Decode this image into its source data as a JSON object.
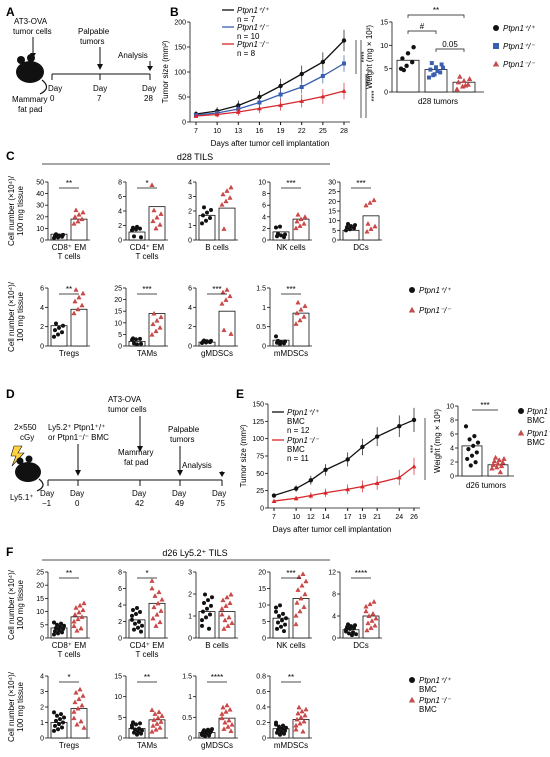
{
  "figure": {
    "panels": [
      {
        "label": "A",
        "texts": [
          "AT3-OVA",
          "tumor cells",
          "Mammary",
          "fat pad",
          "Palpable",
          "tumors",
          "Analysis",
          "Day",
          "0",
          "Day",
          "7",
          "Day",
          "28"
        ]
      },
      {
        "label": "B"
      },
      {
        "label": "C",
        "title": "d28 TILS"
      },
      {
        "label": "D",
        "texts": [
          "2×550",
          "cGy",
          "Ly5.2⁺ Ptpn1⁺/⁺",
          "or Ptpn1⁻/⁻ BMC",
          "AT3-OVA",
          "tumor cells",
          "Mammary",
          "fat pad",
          "Palpable",
          "tumors",
          "Analysis",
          "Ly5.1⁺",
          "Day",
          "−1",
          "Day",
          "0",
          "Day",
          "42",
          "Day",
          "49",
          "Day",
          "75"
        ]
      },
      {
        "label": "E"
      },
      {
        "label": "F",
        "title": "d26 Ly5.2⁺ TILS"
      }
    ],
    "legends": {
      "B": [
        "Ptpn1⁺/⁺",
        "Ptpn1⁺/⁻",
        "Ptpn1⁻/⁻"
      ],
      "C": [
        "Ptpn1⁺/⁺",
        "Ptpn1⁻/⁻"
      ],
      "E": [
        "Ptpn1⁺/⁺ BMC",
        "Ptpn1⁻/⁻ BMC"
      ],
      "F": [
        "Ptpn1⁺/⁺ BMC",
        "Ptpn1⁻/⁻ BMC"
      ]
    },
    "colors": {
      "wt": "#111111",
      "het": "#3a5fb0",
      "ko": "#d7262b",
      "ko_fill": "#c0504d"
    }
  },
  "chart_data": [
    {
      "id": "B-growth",
      "type": "line",
      "xlabel": "Days after tumor cell implantation",
      "ylabel": "Tumor size (mm²)",
      "x": [
        7,
        10,
        13,
        16,
        19,
        22,
        25,
        28
      ],
      "ylim": [
        0,
        200
      ],
      "yticks": [
        0,
        50,
        100,
        150,
        200
      ],
      "series": [
        {
          "name": "Ptpn1⁺/⁺",
          "n": "n = 7",
          "values": [
            16,
            22,
            33,
            50,
            72,
            96,
            120,
            163
          ]
        },
        {
          "name": "Ptpn1⁺/⁻",
          "n": "n = 10",
          "values": [
            14,
            18,
            26,
            39,
            55,
            70,
            92,
            117
          ]
        },
        {
          "name": "Ptpn1⁻/⁻",
          "n": "n = 8",
          "values": [
            12,
            15,
            20,
            27,
            34,
            42,
            51,
            62
          ]
        }
      ],
      "significance": [
        "****",
        "****",
        "****"
      ]
    },
    {
      "id": "B-weight",
      "type": "bar",
      "ylabel": "Weight (mg × 10²)",
      "xlabel": "d28 tumors",
      "ylim": [
        0,
        15
      ],
      "yticks": [
        0,
        5,
        10,
        15
      ],
      "series": [
        {
          "name": "Ptpn1⁺/⁺",
          "values": [
            6.8
          ],
          "points": [
            5,
            5.6,
            6.4,
            7.2,
            8.3,
            9.6,
            4.7
          ]
        },
        {
          "name": "Ptpn1⁺/⁻",
          "values": [
            4.8
          ],
          "points": [
            3.1,
            3.8,
            4.2,
            4.8,
            5.3,
            5.9,
            6.2,
            4.5,
            5.2,
            3.6
          ]
        },
        {
          "name": "Ptpn1⁻/⁻",
          "values": [
            2.1
          ],
          "points": [
            0.6,
            1.2,
            1.6,
            2.1,
            2.4,
            2.8,
            3.3,
            1.4
          ]
        }
      ],
      "significance": [
        "**",
        "#",
        "0.05"
      ]
    },
    {
      "id": "C",
      "type": "bar",
      "ylabel": "Cell number (×10⁴)/ 100 mg tissue",
      "groups": [
        "Ptpn1⁺/⁺",
        "Ptpn1⁻/⁻"
      ],
      "subplots": [
        {
          "category": "CD8⁺ EM T cells",
          "ylim": [
            0,
            50
          ],
          "yticks": [
            0,
            10,
            20,
            30,
            40,
            50
          ],
          "values": [
            5,
            18
          ],
          "sig": "**"
        },
        {
          "category": "CD4⁺ EM T cells",
          "ylim": [
            0,
            8
          ],
          "yticks": [
            0,
            2,
            4,
            6,
            8
          ],
          "values": [
            1.1,
            4.6
          ],
          "sig": "*"
        },
        {
          "category": "B cells",
          "ylim": [
            0,
            4
          ],
          "yticks": [
            0,
            1,
            2,
            3,
            4
          ],
          "values": [
            1.7,
            2.2
          ],
          "sig": ""
        },
        {
          "category": "NK cells",
          "ylim": [
            0,
            10
          ],
          "yticks": [
            0,
            2,
            4,
            6,
            8,
            10
          ],
          "values": [
            1.4,
            3.6
          ],
          "sig": "***"
        },
        {
          "category": "DCs",
          "ylim": [
            0,
            30
          ],
          "yticks": [
            0,
            5,
            10,
            15,
            20,
            25,
            30
          ],
          "values": [
            5,
            12.5
          ],
          "sig": "***"
        },
        {
          "category": "Tregs",
          "ylim": [
            0,
            6
          ],
          "yticks": [
            0,
            2,
            4,
            6
          ],
          "values": [
            2.1,
            3.8
          ],
          "sig": "**"
        },
        {
          "category": "TAMs",
          "ylim": [
            0,
            25
          ],
          "yticks": [
            0,
            5,
            10,
            15,
            20,
            25
          ],
          "values": [
            2,
            14
          ],
          "sig": "***"
        },
        {
          "category": "gMDSCs",
          "ylim": [
            0,
            6
          ],
          "yticks": [
            0,
            2,
            4,
            6
          ],
          "values": [
            0.4,
            3.6
          ],
          "sig": "***"
        },
        {
          "category": "mMDSCs",
          "ylim": [
            0,
            1.5
          ],
          "yticks": [
            0,
            0.5,
            1.0,
            1.5
          ],
          "values": [
            0.15,
            0.85
          ],
          "sig": "***"
        }
      ]
    },
    {
      "id": "E-growth",
      "type": "line",
      "xlabel": "Days after tumor cell implantation",
      "ylabel": "Tumor size (mm²)",
      "x": [
        7,
        10,
        12,
        14,
        17,
        19,
        21,
        24,
        26
      ],
      "ylim": [
        0,
        150
      ],
      "yticks": [
        0,
        25,
        50,
        75,
        100,
        125,
        150
      ],
      "series": [
        {
          "name": "Ptpn1⁺/⁺ BMC",
          "n": "n = 12",
          "values": [
            18,
            28,
            40,
            55,
            70,
            88,
            103,
            118,
            127
          ]
        },
        {
          "name": "Ptpn1⁻/⁻ BMC",
          "n": "n = 11",
          "values": [
            10,
            14,
            18,
            22,
            27,
            31,
            36,
            44,
            60
          ]
        }
      ],
      "significance": [
        "***"
      ]
    },
    {
      "id": "E-weight",
      "type": "bar",
      "ylabel": "Weight (mg × 10²)",
      "xlabel": "d26 tumors",
      "ylim": [
        0,
        10
      ],
      "yticks": [
        0,
        2,
        4,
        6,
        8,
        10
      ],
      "series": [
        {
          "name": "Ptpn1⁺/⁺ BMC",
          "values": [
            4.3
          ]
        },
        {
          "name": "Ptpn1⁻/⁻ BMC",
          "values": [
            1.6
          ]
        }
      ],
      "significance": [
        "***"
      ]
    },
    {
      "id": "F",
      "type": "bar",
      "ylabel": "Cell number (×10⁴)/ 100 mg tissue",
      "groups": [
        "Ptpn1⁺/⁺ BMC",
        "Ptpn1⁻/⁻ BMC"
      ],
      "subplots": [
        {
          "category": "CD8⁺ EM T cells",
          "ylim": [
            0,
            25
          ],
          "yticks": [
            0,
            5,
            10,
            15,
            20,
            25
          ],
          "values": [
            3.8,
            8
          ],
          "sig": "**"
        },
        {
          "category": "CD4⁺ EM T cells",
          "ylim": [
            0,
            8
          ],
          "yticks": [
            0,
            2,
            4,
            6,
            8
          ],
          "values": [
            2.2,
            4.2
          ],
          "sig": "*"
        },
        {
          "category": "B cells",
          "ylim": [
            0,
            3
          ],
          "yticks": [
            0,
            1,
            2,
            3
          ],
          "values": [
            1.2,
            1.2
          ],
          "sig": ""
        },
        {
          "category": "NK cells",
          "ylim": [
            0,
            20
          ],
          "yticks": [
            0,
            5,
            10,
            15,
            20
          ],
          "values": [
            6,
            12
          ],
          "sig": "***"
        },
        {
          "category": "DCs",
          "ylim": [
            0,
            12
          ],
          "yticks": [
            0,
            4,
            8,
            12
          ],
          "values": [
            1.5,
            4
          ],
          "sig": "****"
        },
        {
          "category": "Tregs",
          "ylim": [
            0,
            4
          ],
          "yticks": [
            0,
            1,
            2,
            3,
            4
          ],
          "values": [
            1,
            1.9
          ],
          "sig": "*"
        },
        {
          "category": "TAMs",
          "ylim": [
            0,
            15
          ],
          "yticks": [
            0,
            5,
            10,
            15
          ],
          "values": [
            2.3,
            4.4
          ],
          "sig": "**"
        },
        {
          "category": "gMDSCs",
          "ylim": [
            0,
            1.5
          ],
          "yticks": [
            0,
            0.5,
            1.0,
            1.5
          ],
          "values": [
            0.13,
            0.48
          ],
          "sig": "****"
        },
        {
          "category": "mMDSCs",
          "ylim": [
            0,
            0.8
          ],
          "yticks": [
            0,
            0.2,
            0.4,
            0.6,
            0.8
          ],
          "values": [
            0.12,
            0.24
          ],
          "sig": "**"
        }
      ]
    }
  ]
}
